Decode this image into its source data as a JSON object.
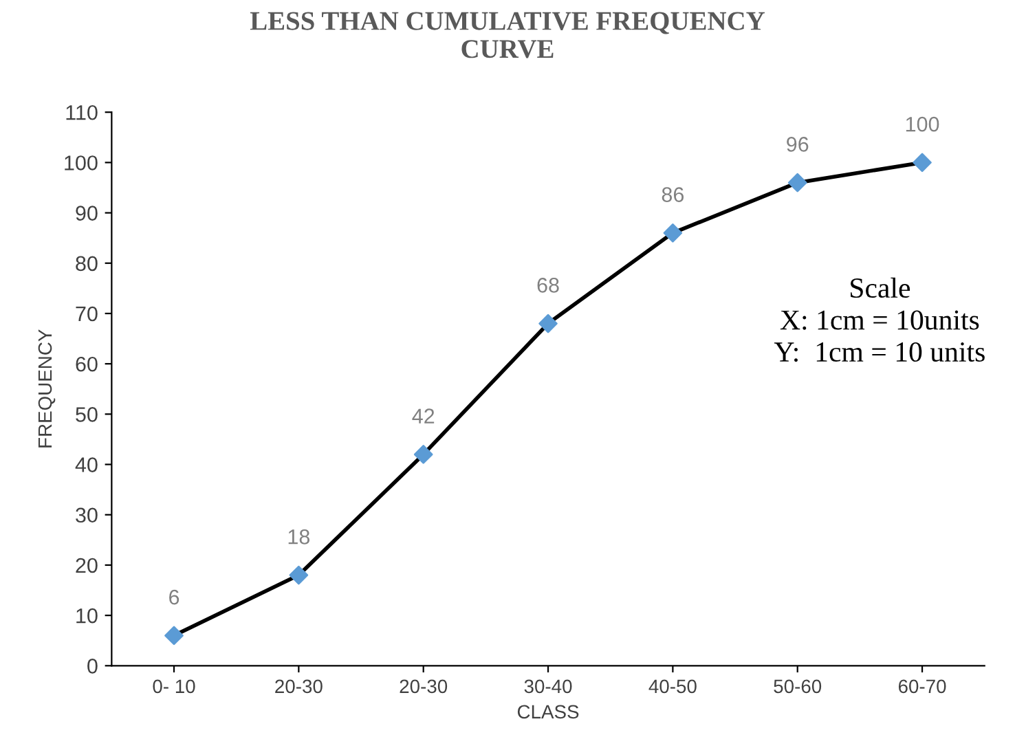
{
  "chart_data": {
    "type": "line",
    "title": "LESS THAN CUMULATIVE FREQUENCY\nCURVE",
    "xlabel": "CLASS",
    "ylabel": "FREQUENCY",
    "categories": [
      "0- 10",
      "20-30",
      "20-30",
      "30-40",
      "40-50",
      "50-60",
      "60-70"
    ],
    "series": [
      {
        "color": "#000000",
        "colors": [
          "#5b9bd5",
          "#5b9bd5",
          "#5b9bd5",
          "#5b9bd5",
          "#5b9bd5",
          "#5b9bd5",
          "#5b9bd5"
        ],
        "values": [
          6,
          18,
          42,
          68,
          86,
          96,
          100
        ]
      }
    ],
    "marker": "diamond",
    "line_style": "solid",
    "data_labels": true,
    "grid": false,
    "legend": false,
    "ylim": [
      0,
      110
    ],
    "yticks": [
      0,
      10,
      20,
      30,
      40,
      50,
      60,
      70,
      80,
      90,
      100,
      110
    ],
    "annotations": [
      "Scale\nX: 1cm = 10units\nY:  1cm = 10 units"
    ]
  }
}
